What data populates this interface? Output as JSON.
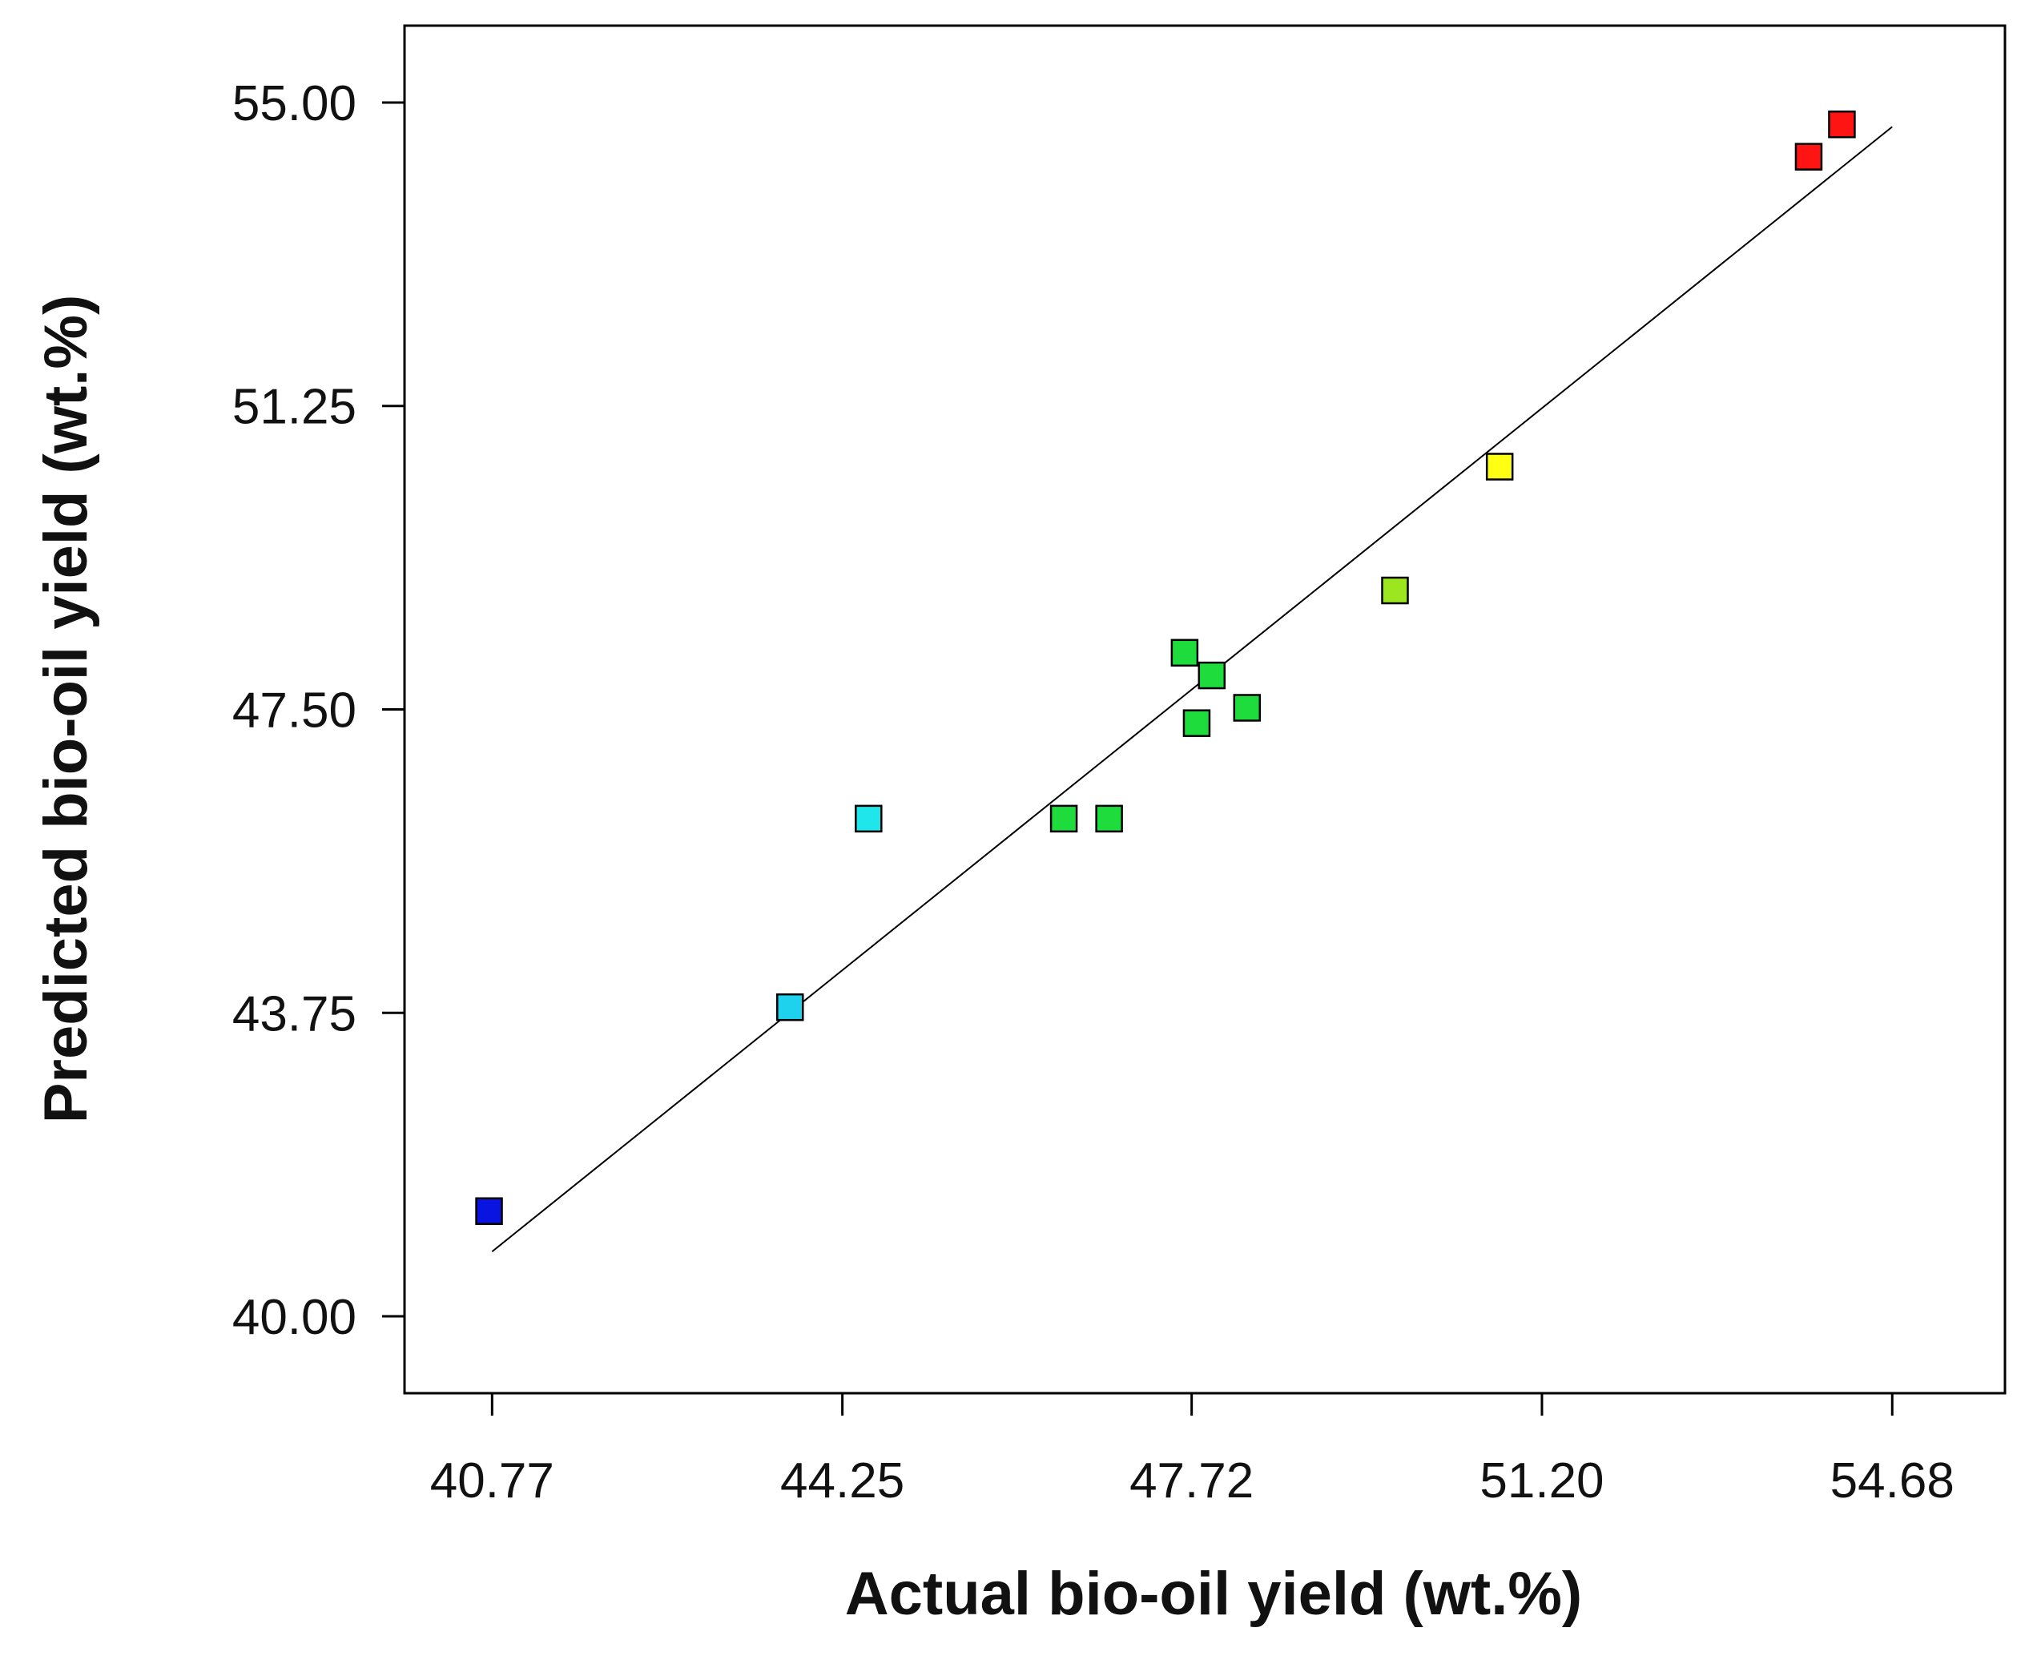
{
  "chart_data": {
    "type": "scatter",
    "title": "",
    "xlabel": "Actual bio-oil yield (wt.%)",
    "ylabel": "Predicted bio-oil yield (wt.%)",
    "xlim": [
      39.9,
      55.8
    ],
    "ylim": [
      39.05,
      55.95
    ],
    "x_ticks": [
      40.77,
      44.25,
      47.72,
      51.2,
      54.68
    ],
    "x_tick_labels": [
      "40.77",
      "44.25",
      "47.72",
      "51.20",
      "54.68"
    ],
    "y_ticks": [
      40.0,
      43.75,
      47.5,
      51.25,
      55.0
    ],
    "y_tick_labels": [
      "40.00",
      "43.75",
      "47.50",
      "51.25",
      "55.00"
    ],
    "grid": false,
    "fit_line": {
      "x": [
        40.77,
        54.68
      ],
      "y": [
        40.8,
        54.7
      ]
    },
    "points": [
      {
        "x": 40.74,
        "y": 41.3,
        "color": "#0a14e0"
      },
      {
        "x": 43.73,
        "y": 43.82,
        "color": "#1ed2ee"
      },
      {
        "x": 44.51,
        "y": 46.15,
        "color": "#1ee6ea"
      },
      {
        "x": 46.45,
        "y": 46.15,
        "color": "#1edc3c"
      },
      {
        "x": 46.9,
        "y": 46.15,
        "color": "#1edc3c"
      },
      {
        "x": 47.65,
        "y": 48.2,
        "color": "#1edc3c"
      },
      {
        "x": 47.92,
        "y": 47.92,
        "color": "#1edc3c"
      },
      {
        "x": 47.77,
        "y": 47.33,
        "color": "#1edc3c"
      },
      {
        "x": 48.27,
        "y": 47.52,
        "color": "#1edc3c"
      },
      {
        "x": 49.74,
        "y": 48.97,
        "color": "#9be61e"
      },
      {
        "x": 50.78,
        "y": 50.5,
        "color": "#ffff14"
      },
      {
        "x": 53.85,
        "y": 54.33,
        "color": "#ff1414"
      },
      {
        "x": 54.18,
        "y": 54.73,
        "color": "#ff1414"
      }
    ]
  }
}
